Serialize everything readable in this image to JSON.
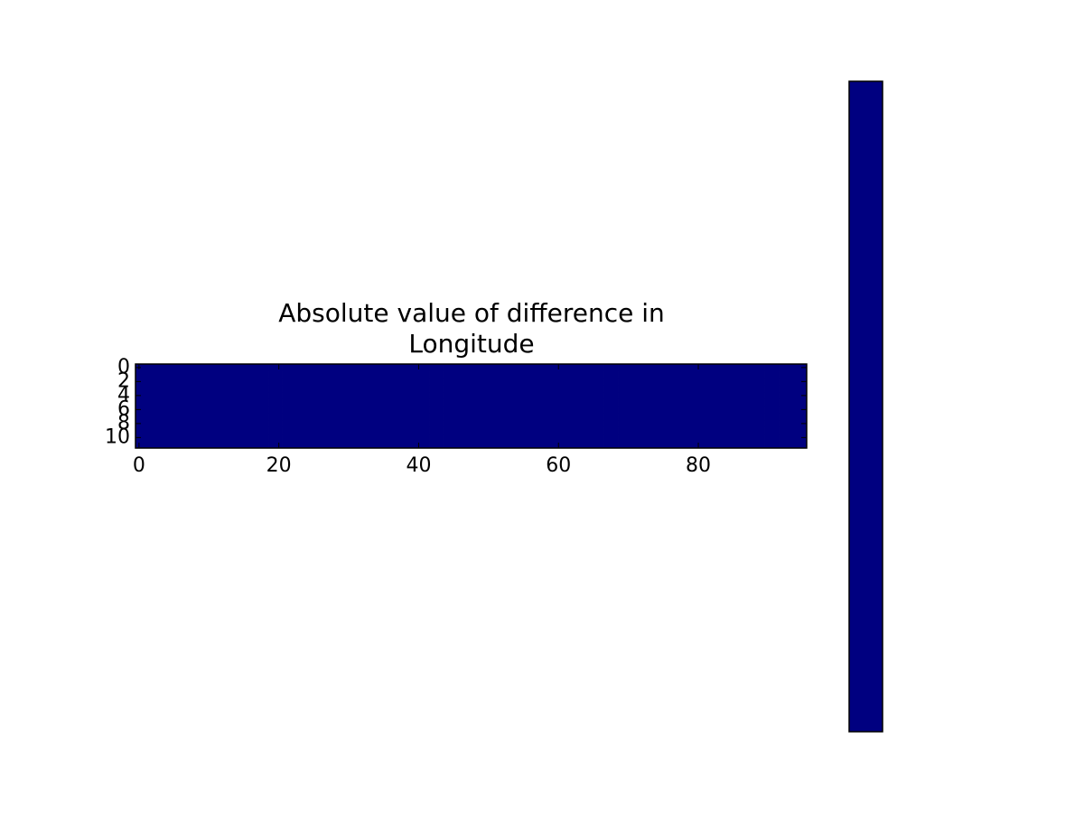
{
  "chart_data": {
    "type": "heatmap",
    "title": "Absolute value of difference in\nLongitude",
    "color": "#000080",
    "colorbar": true,
    "xlim": [
      -0.5,
      95.5
    ],
    "ylim": [
      11.5,
      -0.5
    ],
    "xticks": [
      0,
      20,
      40,
      60,
      80
    ],
    "yticks": [
      0,
      2,
      4,
      6,
      8,
      10
    ],
    "values": [
      [
        0,
        0,
        0,
        0,
        0,
        0,
        0,
        0,
        0,
        0,
        0,
        0,
        0,
        0,
        0,
        0,
        0,
        0,
        0,
        0,
        0,
        0,
        0,
        0,
        0,
        0,
        0,
        0,
        0,
        0,
        0,
        0,
        0,
        0,
        0,
        0,
        0,
        0,
        0,
        0,
        0,
        0,
        0,
        0,
        0,
        0,
        0,
        0,
        0,
        0,
        0,
        0,
        0,
        0,
        0,
        0,
        0,
        0,
        0,
        0,
        0,
        0,
        0,
        0,
        0,
        0,
        0,
        0,
        0,
        0,
        0,
        0,
        0,
        0,
        0,
        0,
        0,
        0,
        0,
        0,
        0,
        0,
        0,
        0,
        0,
        0,
        0,
        0,
        0,
        0,
        0,
        0,
        0,
        0,
        0,
        0
      ],
      [
        0,
        0,
        0,
        0,
        0,
        0,
        0,
        0,
        0,
        0,
        0,
        0,
        0,
        0,
        0,
        0,
        0,
        0,
        0,
        0,
        0,
        0,
        0,
        0,
        0,
        0,
        0,
        0,
        0,
        0,
        0,
        0,
        0,
        0,
        0,
        0,
        0,
        0,
        0,
        0,
        0,
        0,
        0,
        0,
        0,
        0,
        0,
        0,
        0,
        0,
        0,
        0,
        0,
        0,
        0,
        0,
        0,
        0,
        0,
        0,
        0,
        0,
        0,
        0,
        0,
        0,
        0,
        0,
        0,
        0,
        0,
        0,
        0,
        0,
        0,
        0,
        0,
        0,
        0,
        0,
        0,
        0,
        0,
        0,
        0,
        0,
        0,
        0,
        0,
        0,
        0,
        0,
        0,
        0,
        0,
        0
      ],
      [
        0,
        0,
        0,
        0,
        0,
        0,
        0,
        0,
        0,
        0,
        0,
        0,
        0,
        0,
        0,
        0,
        0,
        0,
        0,
        0,
        0,
        0,
        0,
        0,
        0,
        0,
        0,
        0,
        0,
        0,
        0,
        0,
        0,
        0,
        0,
        0,
        0,
        0,
        0,
        0,
        0,
        0,
        0,
        0,
        0,
        0,
        0,
        0,
        0,
        0,
        0,
        0,
        0,
        0,
        0,
        0,
        0,
        0,
        0,
        0,
        0,
        0,
        0,
        0,
        0,
        0,
        0,
        0,
        0,
        0,
        0,
        0,
        0,
        0,
        0,
        0,
        0,
        0,
        0,
        0,
        0,
        0,
        0,
        0,
        0,
        0,
        0,
        0,
        0,
        0,
        0,
        0,
        0,
        0,
        0,
        0
      ],
      [
        0,
        0,
        0,
        0,
        0,
        0,
        0,
        0,
        0,
        0,
        0,
        0,
        0,
        0,
        0,
        0,
        0,
        0,
        0,
        0,
        0,
        0,
        0,
        0,
        0,
        0,
        0,
        0,
        0,
        0,
        0,
        0,
        0,
        0,
        0,
        0,
        0,
        0,
        0,
        0,
        0,
        0,
        0,
        0,
        0,
        0,
        0,
        0,
        0,
        0,
        0,
        0,
        0,
        0,
        0,
        0,
        0,
        0,
        0,
        0,
        0,
        0,
        0,
        0,
        0,
        0,
        0,
        0,
        0,
        0,
        0,
        0,
        0,
        0,
        0,
        0,
        0,
        0,
        0,
        0,
        0,
        0,
        0,
        0,
        0,
        0,
        0,
        0,
        0,
        0,
        0,
        0,
        0,
        0,
        0,
        0
      ],
      [
        0,
        0,
        0,
        0,
        0,
        0,
        0,
        0,
        0,
        0,
        0,
        0,
        0,
        0,
        0,
        0,
        0,
        0,
        0,
        0,
        0,
        0,
        0,
        0,
        0,
        0,
        0,
        0,
        0,
        0,
        0,
        0,
        0,
        0,
        0,
        0,
        0,
        0,
        0,
        0,
        0,
        0,
        0,
        0,
        0,
        0,
        0,
        0,
        0,
        0,
        0,
        0,
        0,
        0,
        0,
        0,
        0,
        0,
        0,
        0,
        0,
        0,
        0,
        0,
        0,
        0,
        0,
        0,
        0,
        0,
        0,
        0,
        0,
        0,
        0,
        0,
        0,
        0,
        0,
        0,
        0,
        0,
        0,
        0,
        0,
        0,
        0,
        0,
        0,
        0,
        0,
        0,
        0,
        0,
        0,
        0
      ],
      [
        0,
        0,
        0,
        0,
        0,
        0,
        0,
        0,
        0,
        0,
        0,
        0,
        0,
        0,
        0,
        0,
        0,
        0,
        0,
        0,
        0,
        0,
        0,
        0,
        0,
        0,
        0,
        0,
        0,
        0,
        0,
        0,
        0,
        0,
        0,
        0,
        0,
        0,
        0,
        0,
        0,
        0,
        0,
        0,
        0,
        0,
        0,
        0,
        0,
        0,
        0,
        0,
        0,
        0,
        0,
        0,
        0,
        0,
        0,
        0,
        0,
        0,
        0,
        0,
        0,
        0,
        0,
        0,
        0,
        0,
        0,
        0,
        0,
        0,
        0,
        0,
        0,
        0,
        0,
        0,
        0,
        0,
        0,
        0,
        0,
        0,
        0,
        0,
        0,
        0,
        0,
        0,
        0,
        0,
        0,
        0
      ],
      [
        0,
        0,
        0,
        0,
        0,
        0,
        0,
        0,
        0,
        0,
        0,
        0,
        0,
        0,
        0,
        0,
        0,
        0,
        0,
        0,
        0,
        0,
        0,
        0,
        0,
        0,
        0,
        0,
        0,
        0,
        0,
        0,
        0,
        0,
        0,
        0,
        0,
        0,
        0,
        0,
        0,
        0,
        0,
        0,
        0,
        0,
        0,
        0,
        0,
        0,
        0,
        0,
        0,
        0,
        0,
        0,
        0,
        0,
        0,
        0,
        0,
        0,
        0,
        0,
        0,
        0,
        0,
        0,
        0,
        0,
        0,
        0,
        0,
        0,
        0,
        0,
        0,
        0,
        0,
        0,
        0,
        0,
        0,
        0,
        0,
        0,
        0,
        0,
        0,
        0,
        0,
        0,
        0,
        0,
        0,
        0
      ],
      [
        0,
        0,
        0,
        0,
        0,
        0,
        0,
        0,
        0,
        0,
        0,
        0,
        0,
        0,
        0,
        0,
        0,
        0,
        0,
        0,
        0,
        0,
        0,
        0,
        0,
        0,
        0,
        0,
        0,
        0,
        0,
        0,
        0,
        0,
        0,
        0,
        0,
        0,
        0,
        0,
        0,
        0,
        0,
        0,
        0,
        0,
        0,
        0,
        0,
        0,
        0,
        0,
        0,
        0,
        0,
        0,
        0,
        0,
        0,
        0,
        0,
        0,
        0,
        0,
        0,
        0,
        0,
        0,
        0,
        0,
        0,
        0,
        0,
        0,
        0,
        0,
        0,
        0,
        0,
        0,
        0,
        0,
        0,
        0,
        0,
        0,
        0,
        0,
        0,
        0,
        0,
        0,
        0,
        0,
        0,
        0
      ],
      [
        0,
        0,
        0,
        0,
        0,
        0,
        0,
        0,
        0,
        0,
        0,
        0,
        0,
        0,
        0,
        0,
        0,
        0,
        0,
        0,
        0,
        0,
        0,
        0,
        0,
        0,
        0,
        0,
        0,
        0,
        0,
        0,
        0,
        0,
        0,
        0,
        0,
        0,
        0,
        0,
        0,
        0,
        0,
        0,
        0,
        0,
        0,
        0,
        0,
        0,
        0,
        0,
        0,
        0,
        0,
        0,
        0,
        0,
        0,
        0,
        0,
        0,
        0,
        0,
        0,
        0,
        0,
        0,
        0,
        0,
        0,
        0,
        0,
        0,
        0,
        0,
        0,
        0,
        0,
        0,
        0,
        0,
        0,
        0,
        0,
        0,
        0,
        0,
        0,
        0,
        0,
        0,
        0,
        0,
        0,
        0
      ],
      [
        0,
        0,
        0,
        0,
        0,
        0,
        0,
        0,
        0,
        0,
        0,
        0,
        0,
        0,
        0,
        0,
        0,
        0,
        0,
        0,
        0,
        0,
        0,
        0,
        0,
        0,
        0,
        0,
        0,
        0,
        0,
        0,
        0,
        0,
        0,
        0,
        0,
        0,
        0,
        0,
        0,
        0,
        0,
        0,
        0,
        0,
        0,
        0,
        0,
        0,
        0,
        0,
        0,
        0,
        0,
        0,
        0,
        0,
        0,
        0,
        0,
        0,
        0,
        0,
        0,
        0,
        0,
        0,
        0,
        0,
        0,
        0,
        0,
        0,
        0,
        0,
        0,
        0,
        0,
        0,
        0,
        0,
        0,
        0,
        0,
        0,
        0,
        0,
        0,
        0,
        0,
        0,
        0,
        0,
        0,
        0
      ],
      [
        0,
        0,
        0,
        0,
        0,
        0,
        0,
        0,
        0,
        0,
        0,
        0,
        0,
        0,
        0,
        0,
        0,
        0,
        0,
        0,
        0,
        0,
        0,
        0,
        0,
        0,
        0,
        0,
        0,
        0,
        0,
        0,
        0,
        0,
        0,
        0,
        0,
        0,
        0,
        0,
        0,
        0,
        0,
        0,
        0,
        0,
        0,
        0,
        0,
        0,
        0,
        0,
        0,
        0,
        0,
        0,
        0,
        0,
        0,
        0,
        0,
        0,
        0,
        0,
        0,
        0,
        0,
        0,
        0,
        0,
        0,
        0,
        0,
        0,
        0,
        0,
        0,
        0,
        0,
        0,
        0,
        0,
        0,
        0,
        0,
        0,
        0,
        0,
        0,
        0,
        0,
        0,
        0,
        0,
        0,
        0
      ],
      [
        0,
        0,
        0,
        0,
        0,
        0,
        0,
        0,
        0,
        0,
        0,
        0,
        0,
        0,
        0,
        0,
        0,
        0,
        0,
        0,
        0,
        0,
        0,
        0,
        0,
        0,
        0,
        0,
        0,
        0,
        0,
        0,
        0,
        0,
        0,
        0,
        0,
        0,
        0,
        0,
        0,
        0,
        0,
        0,
        0,
        0,
        0,
        0,
        0,
        0,
        0,
        0,
        0,
        0,
        0,
        0,
        0,
        0,
        0,
        0,
        0,
        0,
        0,
        0,
        0,
        0,
        0,
        0,
        0,
        0,
        0,
        0,
        0,
        0,
        0,
        0,
        0,
        0,
        0,
        0,
        0,
        0,
        0,
        0,
        0,
        0,
        0,
        0,
        0,
        0,
        0,
        0,
        0,
        0,
        0,
        0
      ]
    ]
  }
}
